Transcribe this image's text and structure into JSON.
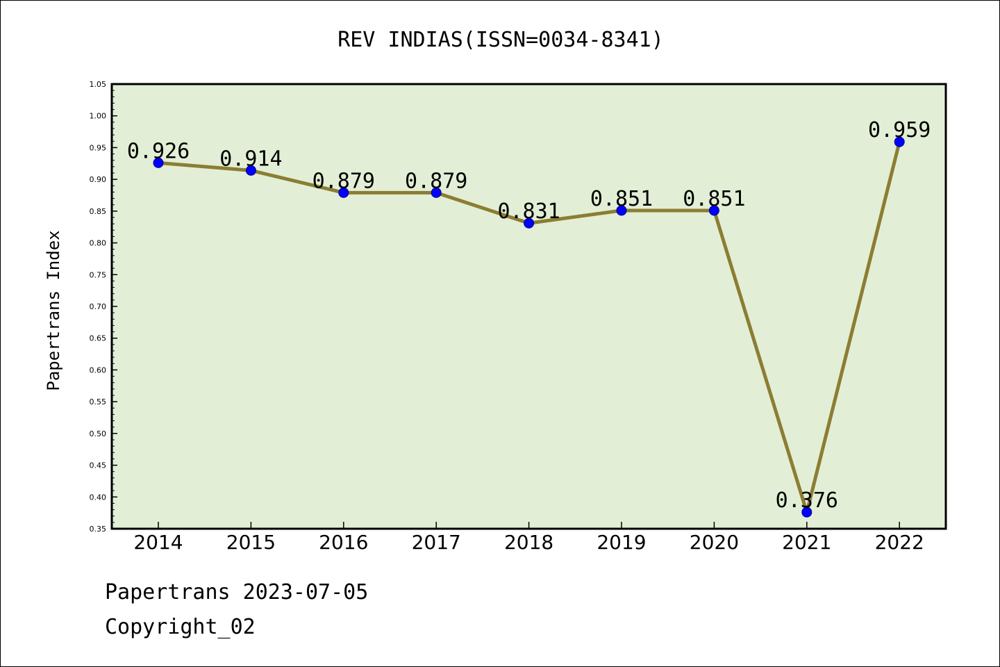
{
  "chart_data": {
    "type": "line",
    "title": "REV INDIAS(ISSN=0034-8341)",
    "xlabel": "",
    "ylabel": "Papertrans Index",
    "categories": [
      "2014",
      "2015",
      "2016",
      "2017",
      "2018",
      "2019",
      "2020",
      "2021",
      "2022"
    ],
    "values": [
      0.926,
      0.914,
      0.879,
      0.879,
      0.831,
      0.851,
      0.851,
      0.376,
      0.959
    ],
    "value_labels": [
      "0.926",
      "0.914",
      "0.879",
      "0.879",
      "0.831",
      "0.851",
      "0.851",
      "0.376",
      "0.959"
    ],
    "ylim": [
      0.35,
      1.05
    ],
    "yticks": [
      "0.35",
      "0.40",
      "0.45",
      "0.50",
      "0.55",
      "0.60",
      "0.65",
      "0.70",
      "0.75",
      "0.80",
      "0.85",
      "0.90",
      "0.95",
      "1.00",
      "1.05"
    ],
    "grid": false,
    "legend": "none",
    "colors": {
      "plot_background": "#e2efd6",
      "line": "#8b7d33",
      "marker": "#0000ff"
    }
  },
  "footer": {
    "line1": "Papertrans 2023-07-05",
    "line2": "Copyright_02"
  }
}
